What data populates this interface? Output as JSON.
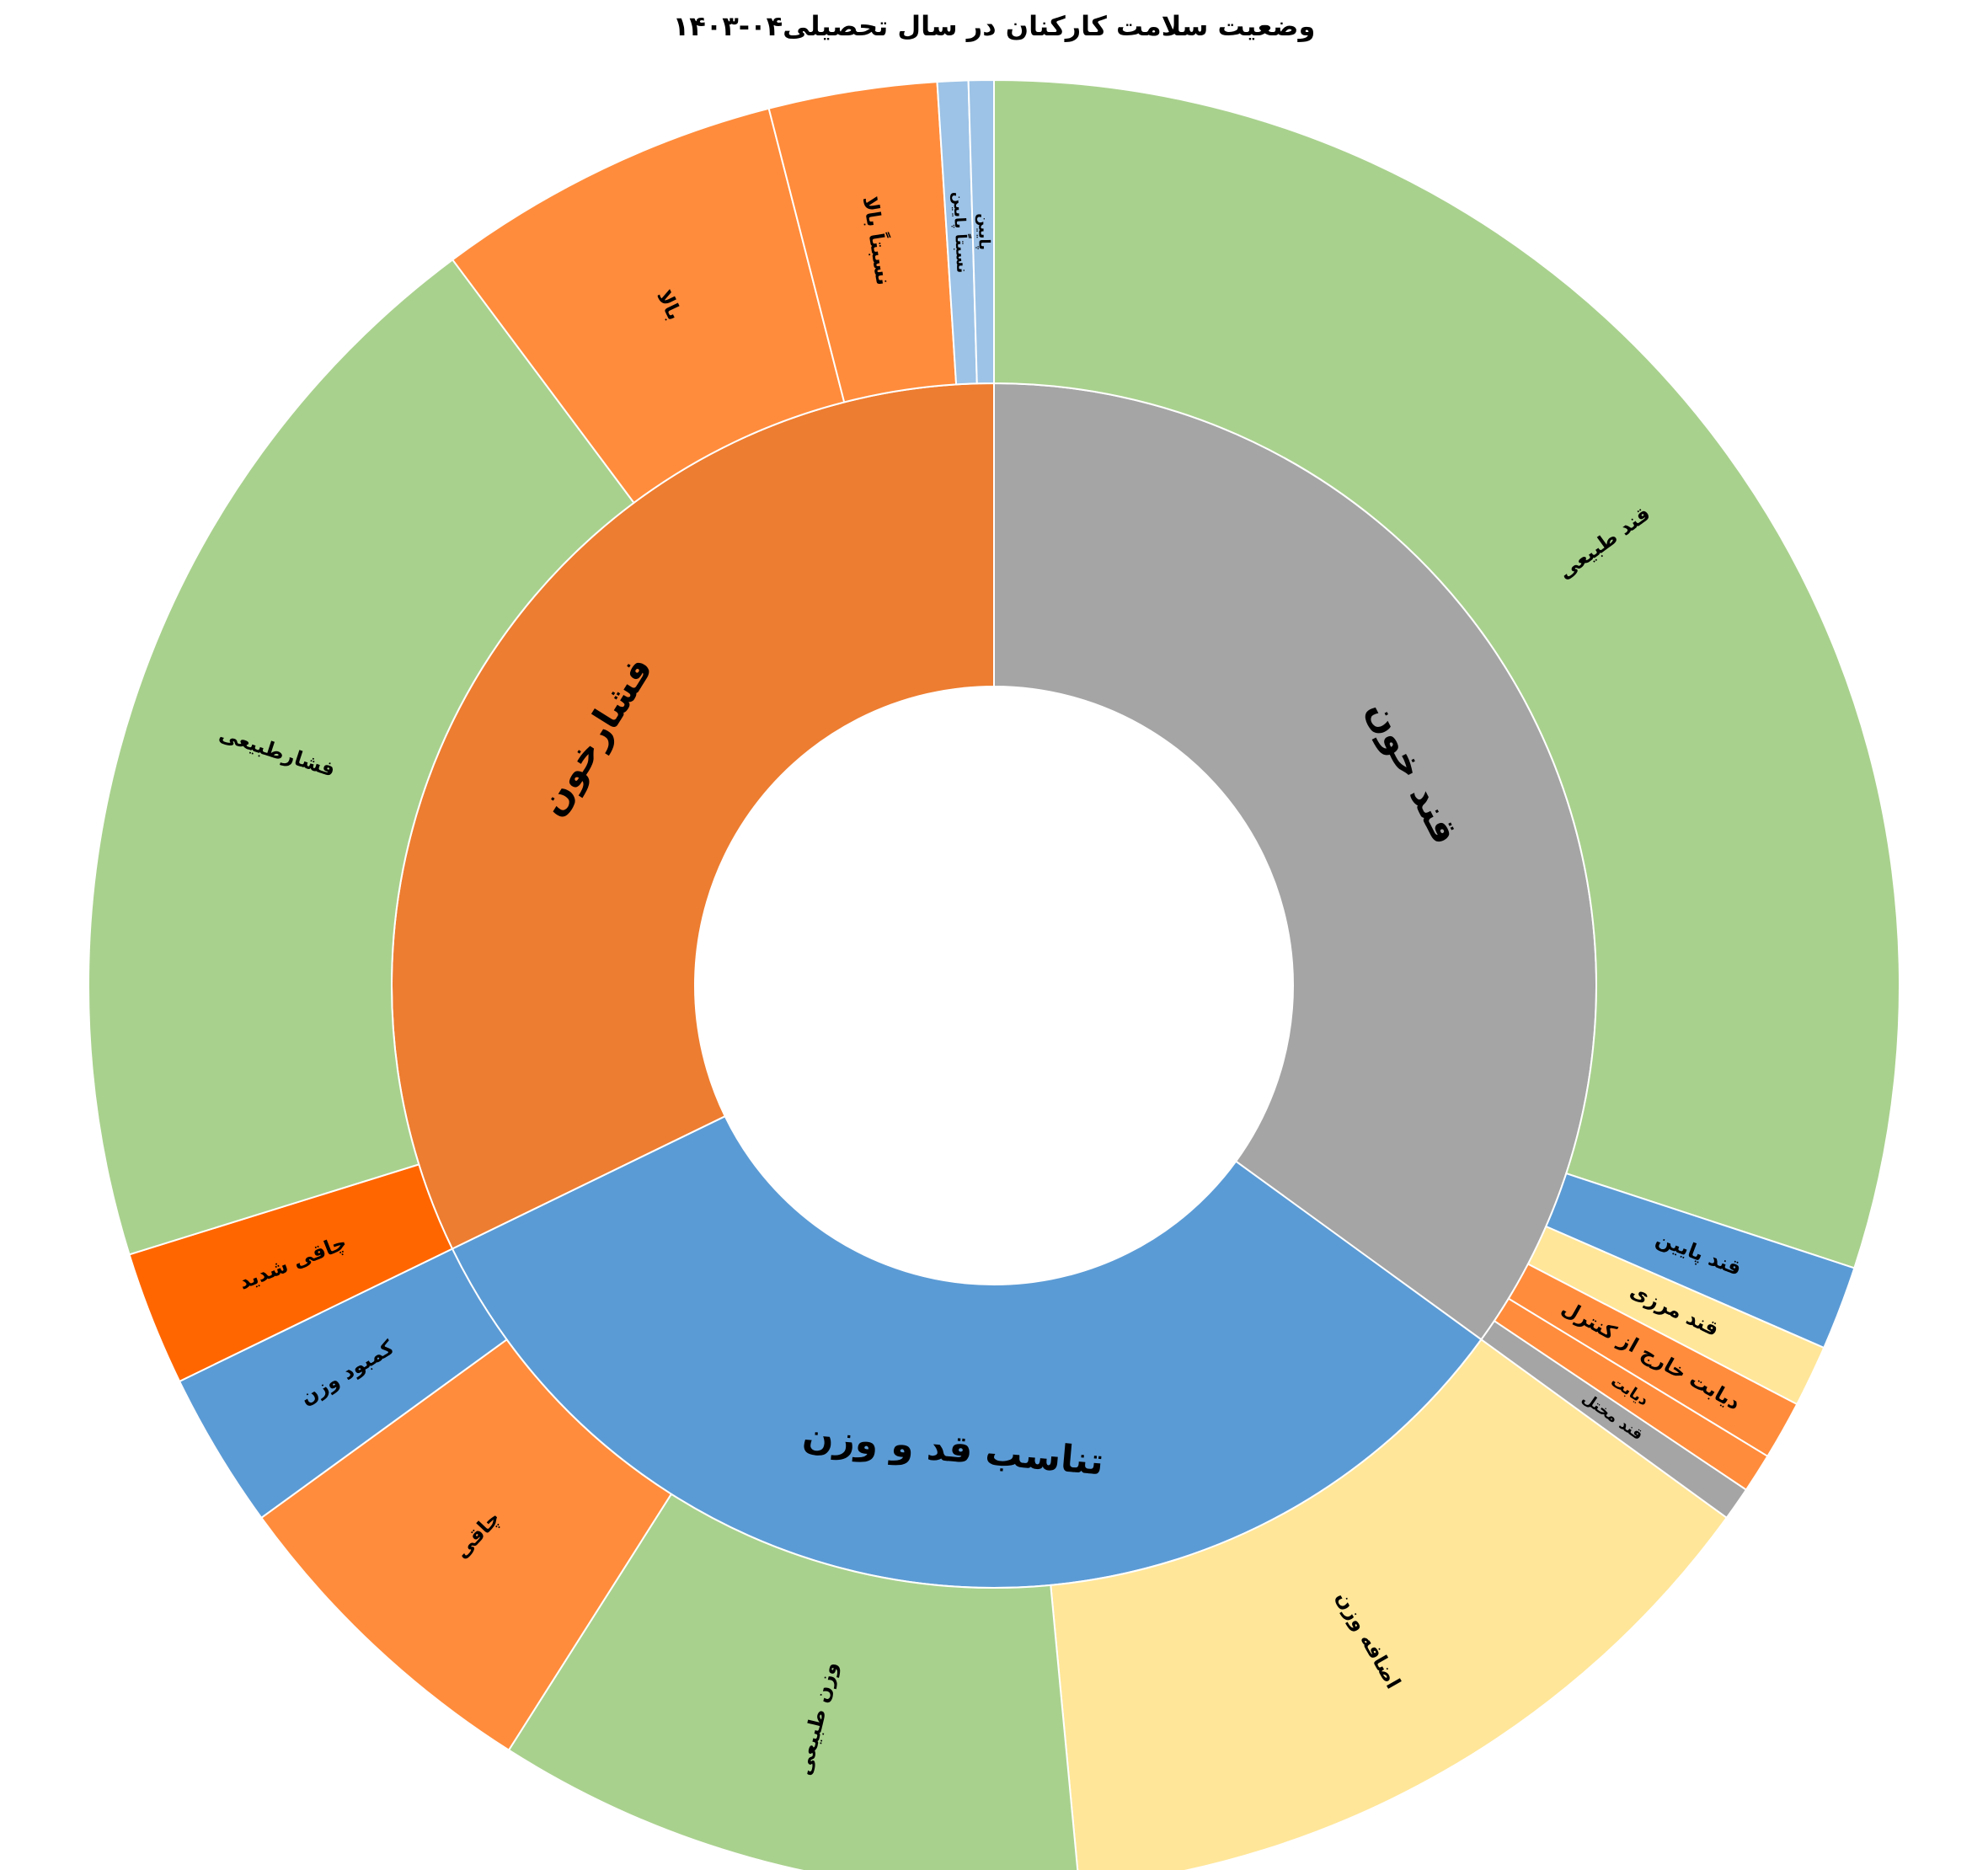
{
  "chart_data": {
    "type": "sunburst",
    "title": "وضعیت سلامت کارکنان در سال تحصیلی۰۴-۱۴۰۳",
    "categories": [
      {
        "name": "قند خون",
        "value": 35,
        "color": "#A5A5A5",
        "children": [
          {
            "name": "قند طبیعی",
            "value": 30.05,
            "color": "#A9D18E"
          },
          {
            "name": "قند پایین",
            "value": 1.5,
            "color": "#5B9BD5"
          },
          {
            "name": "قند مرزی",
            "value": 1.1,
            "color": "#FFE699"
          },
          {
            "name": "دیابت خارج از کنترل",
            "value": 1.05,
            "color": "#FF8C3C"
          },
          {
            "name": "دیابت",
            "value": 0.7,
            "color": "#FF8C3C"
          },
          {
            "name": "قند مختل",
            "value": 0.6,
            "color": "#A5A5A5"
          }
        ]
      },
      {
        "name": "تناسب قد و وزن",
        "value": 32.8,
        "color": "#5B9BD5",
        "children": [
          {
            "name": "اضافه وزن",
            "value": 13.5,
            "color": "#FFE699"
          },
          {
            "name": "وزن طبیعی",
            "value": 10.5,
            "color": "#A9D18E"
          },
          {
            "name": "چاقی",
            "value": 6.0,
            "color": "#FF8C3C"
          },
          {
            "name": "کمبود وزن",
            "value": 2.8,
            "color": "#5B9BD5"
          }
        ]
      },
      {
        "name": "فشارخون",
        "value": 32.2,
        "color": "#ED7D31",
        "children": [
          {
            "name": "چاقی شدید",
            "value": 2.4,
            "color": "#FF6600"
          },
          {
            "name": "فشارطبیعی",
            "value": 19.6,
            "color": "#A9D18E"
          },
          {
            "name": "بالا",
            "value": 6.2,
            "color": "#FF8C3C"
          },
          {
            "name": "نسبتاً بالا",
            "value": 3.0,
            "color": "#FF8C3C"
          },
          {
            "name": "نسبتاً پایین",
            "value": 0.55,
            "color": "#9DC3E6"
          },
          {
            "name": "پایین",
            "value": 0.45,
            "color": "#9DC3E6"
          }
        ]
      }
    ]
  }
}
